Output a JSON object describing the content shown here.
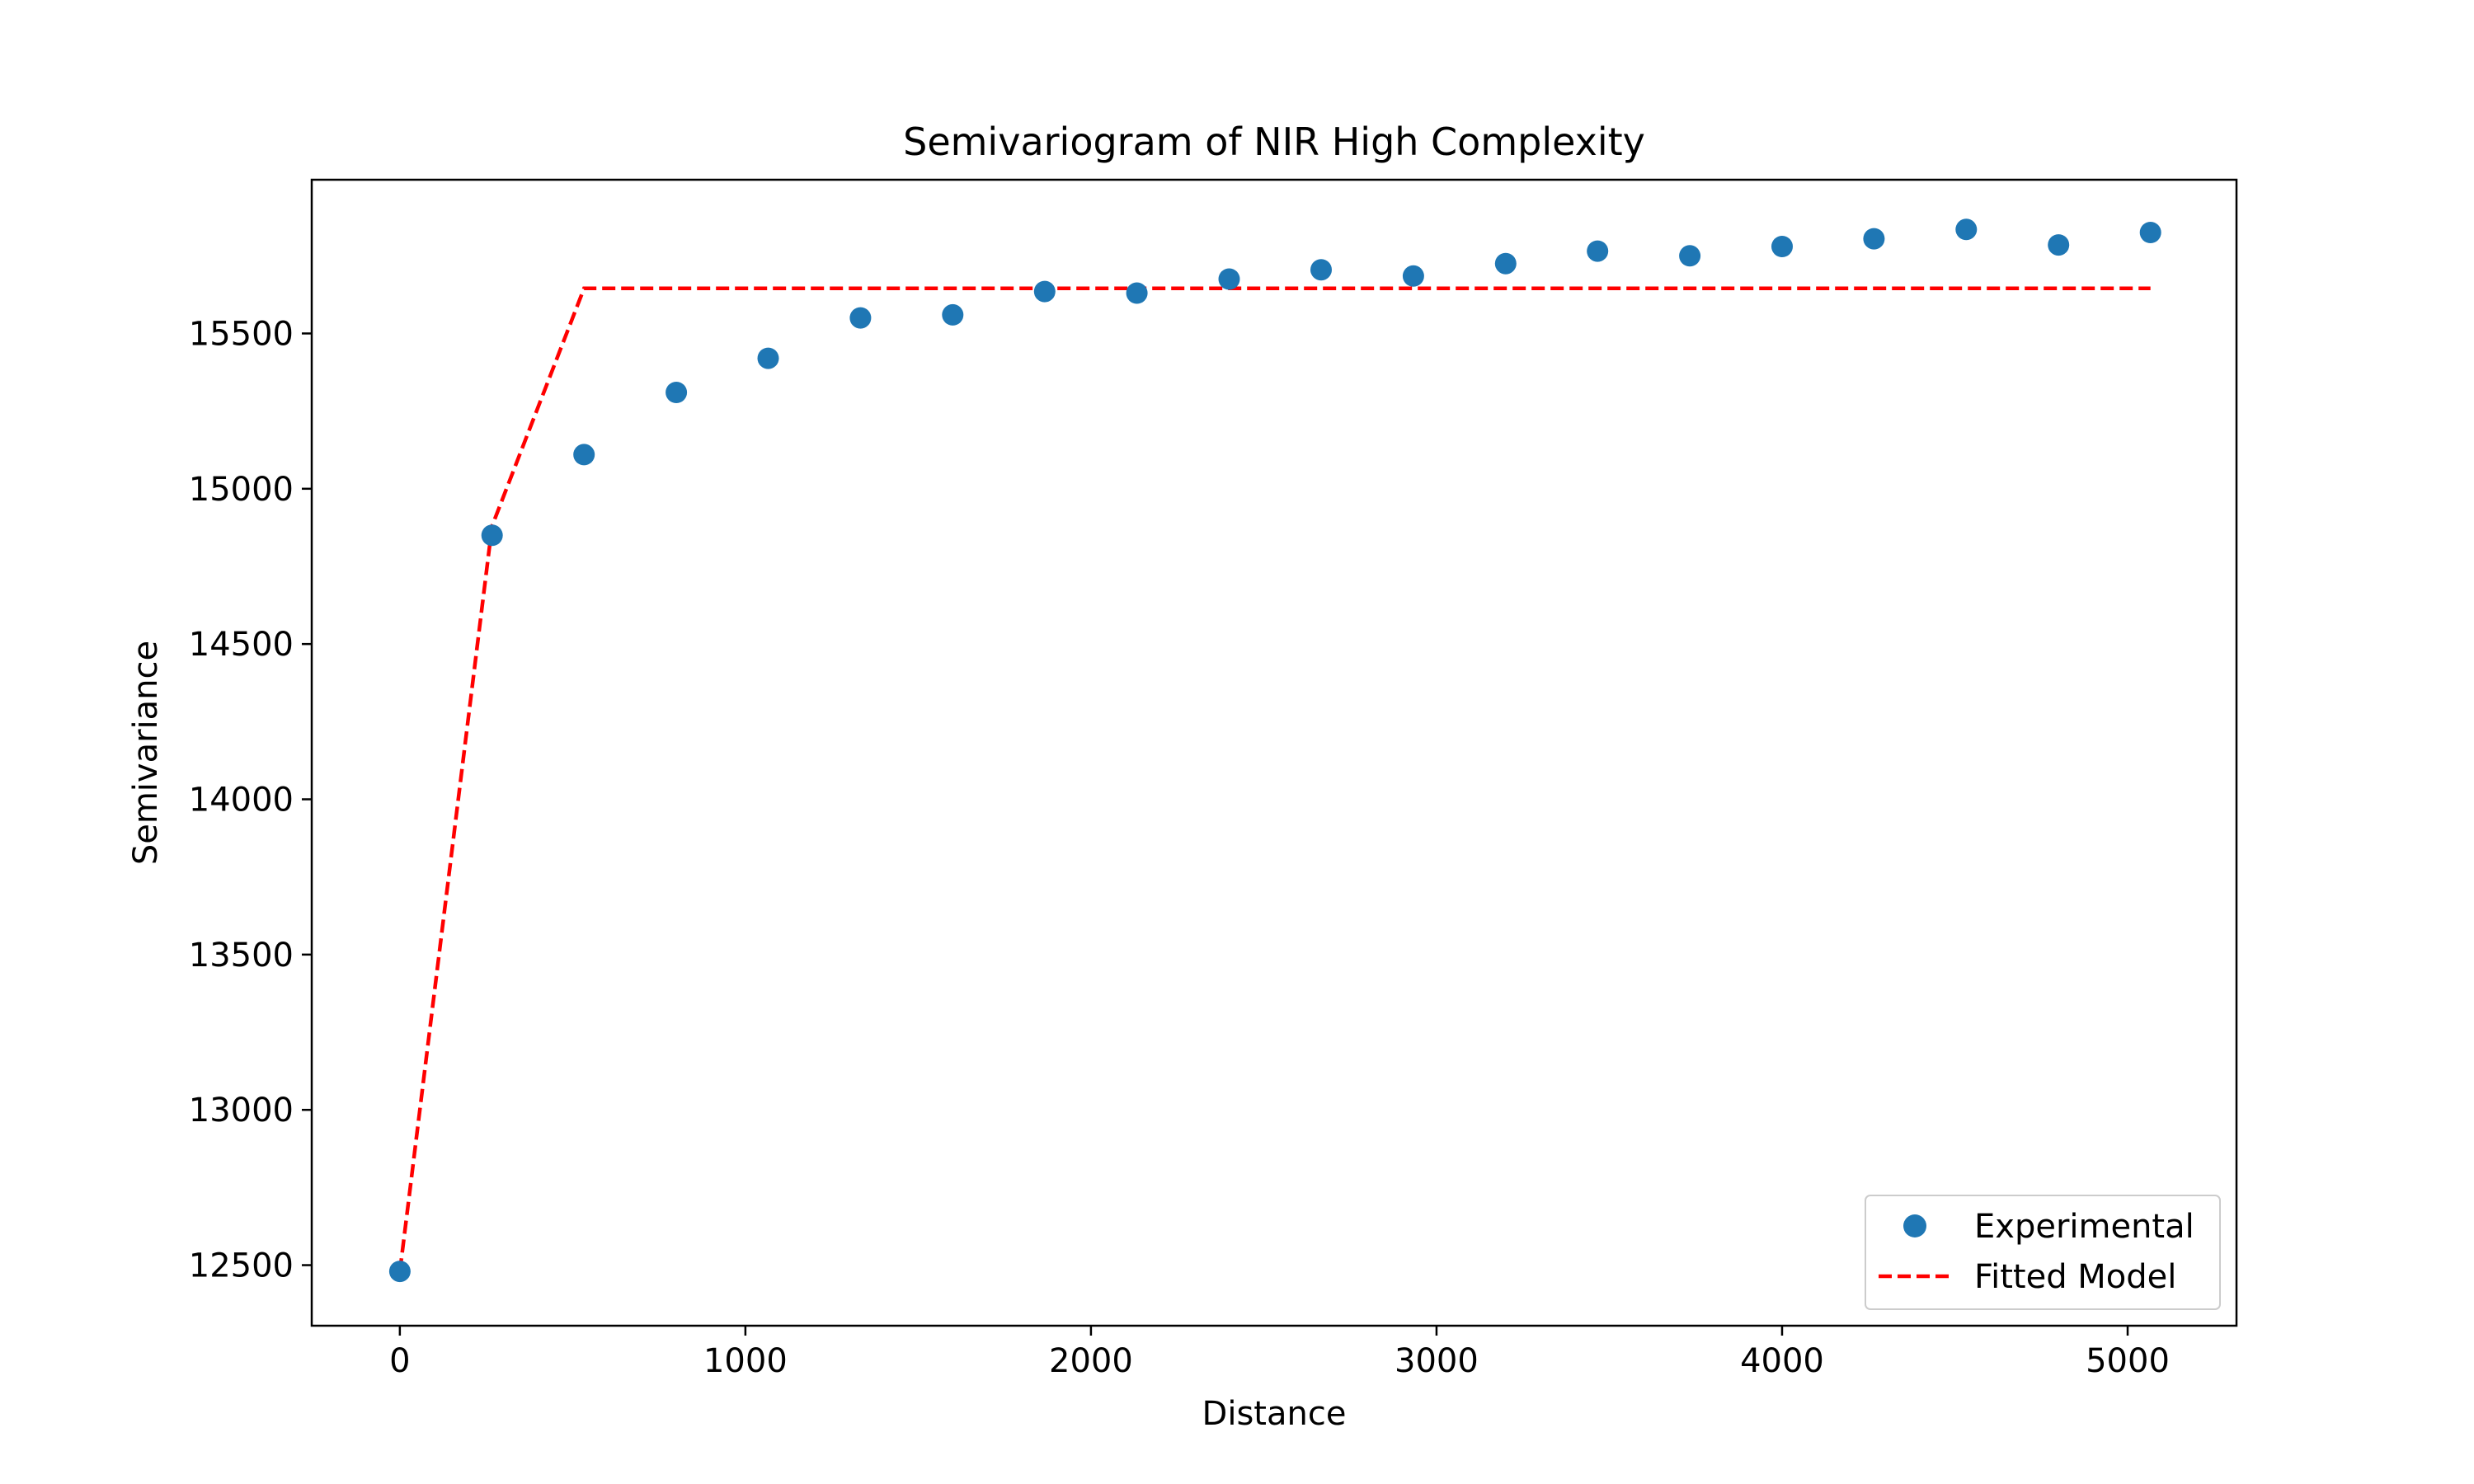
{
  "chart_data": {
    "type": "scatter",
    "title": "Semivariogram of NIR High Complexity",
    "xlabel": "Distance",
    "ylabel": "Semivariance",
    "xlim": [
      -255,
      5315
    ],
    "ylim": [
      12305,
      15995
    ],
    "xticks": [
      0,
      1000,
      2000,
      3000,
      4000,
      5000
    ],
    "yticks": [
      12500,
      13000,
      13500,
      14000,
      14500,
      15000,
      15500
    ],
    "grid": false,
    "legend_position": "lower-right",
    "series": [
      {
        "name": "Experimental",
        "kind": "scatter",
        "color": "#1f77b4",
        "x": [
          0,
          267,
          533,
          800,
          1066,
          1333,
          1600,
          1866,
          2133,
          2400,
          2666,
          2933,
          3200,
          3466,
          3733,
          4000,
          4266,
          4533,
          4800,
          5066
        ],
        "y": [
          12480,
          14850,
          15110,
          15310,
          15420,
          15550,
          15560,
          15635,
          15630,
          15675,
          15705,
          15685,
          15725,
          15765,
          15750,
          15780,
          15805,
          15835,
          15785,
          15825
        ]
      },
      {
        "name": "Fitted Model",
        "kind": "line",
        "style": "dashed",
        "color": "#ff0000",
        "x": [
          0,
          267,
          533,
          800,
          1066,
          1333,
          1600,
          1866,
          2133,
          2400,
          2666,
          2933,
          3200,
          3466,
          3733,
          4000,
          4266,
          4533,
          4800,
          5066
        ],
        "y": [
          12480,
          14880,
          15645,
          15645,
          15645,
          15645,
          15645,
          15645,
          15645,
          15645,
          15645,
          15645,
          15645,
          15645,
          15645,
          15645,
          15645,
          15645,
          15645,
          15645
        ]
      }
    ]
  }
}
